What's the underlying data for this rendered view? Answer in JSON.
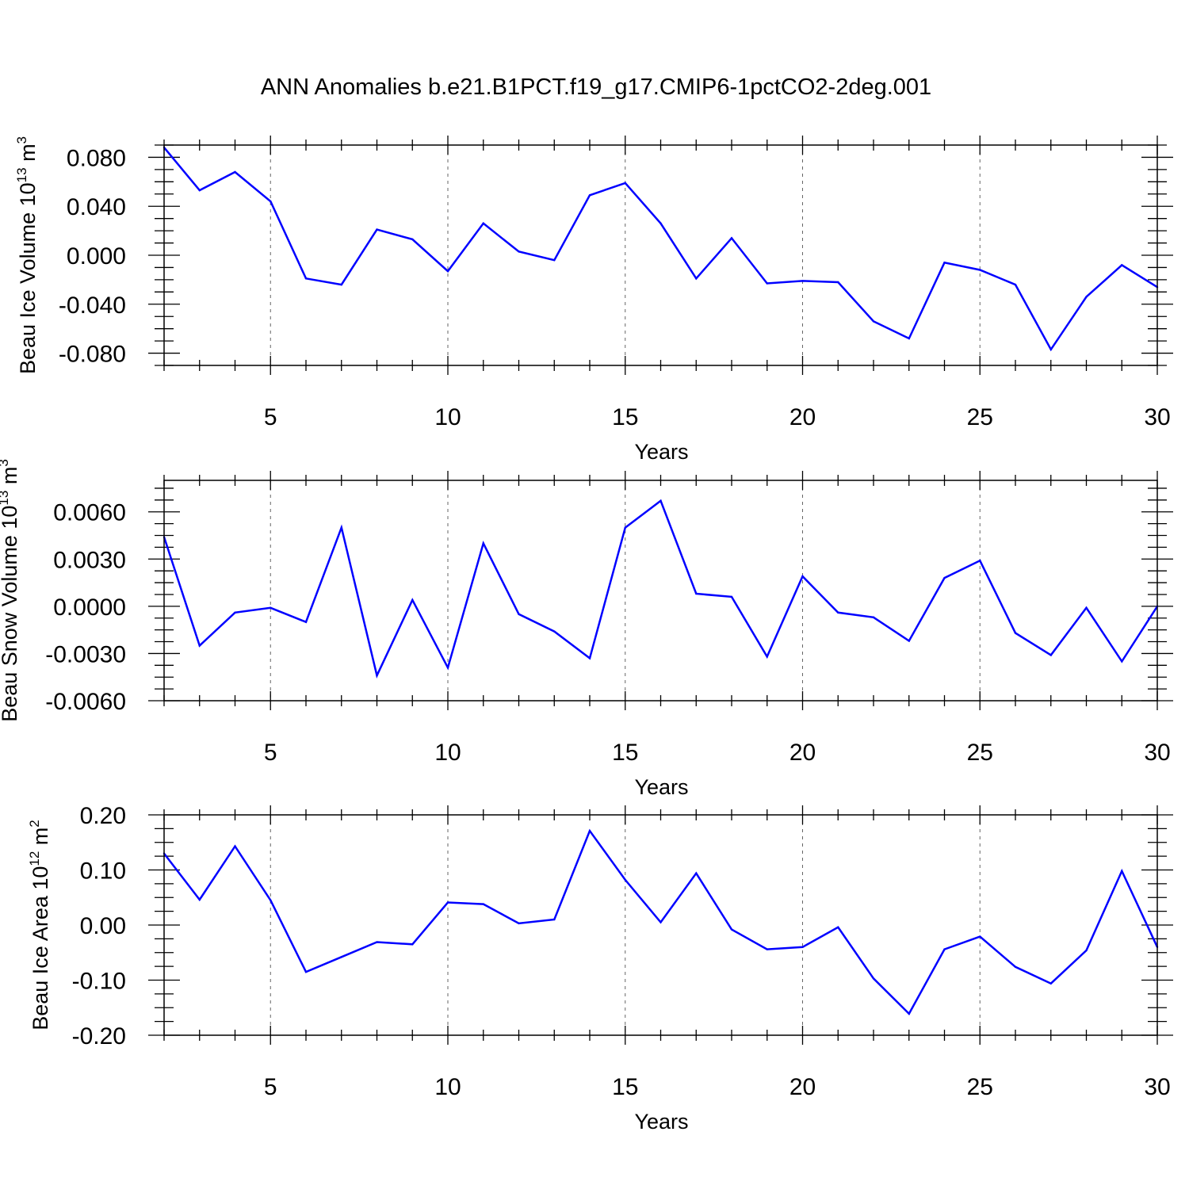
{
  "title": "ANN Anomalies b.e21.B1PCT.f19_g17.CMIP6-1pctCO2-2deg.001",
  "series_color": "#0000FF",
  "chart_data": [
    {
      "type": "line",
      "xlabel": "Years",
      "ylabel_main": "Beau Ice Volume 10",
      "ylabel_exp": "13",
      "ylabel_unit": " m",
      "ylabel_unit_exp": "3",
      "xlim": [
        2,
        30
      ],
      "ylim": [
        -0.09,
        0.09
      ],
      "yticks": [
        -0.08,
        -0.04,
        0.0,
        0.04,
        0.08
      ],
      "ytick_labels": [
        "-0.080",
        "-0.040",
        "0.000",
        "0.040",
        "0.080"
      ],
      "xticks": [
        5,
        10,
        15,
        20,
        25,
        30
      ],
      "xtick_labels": [
        "5",
        "10",
        "15",
        "20",
        "25",
        "30"
      ],
      "grid_x": [
        5,
        10,
        15,
        20,
        25
      ],
      "x": [
        2,
        3,
        4,
        5,
        6,
        7,
        8,
        9,
        10,
        11,
        12,
        13,
        14,
        15,
        16,
        17,
        18,
        19,
        20,
        21,
        22,
        23,
        24,
        25,
        26,
        27,
        28,
        29,
        30
      ],
      "values": [
        0.088,
        0.053,
        0.068,
        0.044,
        -0.019,
        -0.024,
        0.021,
        0.013,
        -0.013,
        0.026,
        0.003,
        -0.004,
        0.049,
        0.059,
        0.026,
        -0.019,
        0.014,
        -0.023,
        -0.021,
        -0.022,
        -0.054,
        -0.068,
        -0.006,
        -0.012,
        -0.024,
        -0.077,
        -0.034,
        -0.008,
        -0.026
      ]
    },
    {
      "type": "line",
      "xlabel": "Years",
      "ylabel_main": "Beau Snow Volume 10",
      "ylabel_exp": "13",
      "ylabel_unit": " m",
      "ylabel_unit_exp": "3",
      "xlim": [
        2,
        30
      ],
      "ylim": [
        -0.006,
        0.008
      ],
      "yticks": [
        -0.006,
        -0.003,
        0.0,
        0.003,
        0.006
      ],
      "ytick_labels": [
        "-0.0060",
        "-0.0030",
        "0.0000",
        "0.0030",
        "0.0060"
      ],
      "xticks": [
        5,
        10,
        15,
        20,
        25,
        30
      ],
      "xtick_labels": [
        "5",
        "10",
        "15",
        "20",
        "25",
        "30"
      ],
      "grid_x": [
        5,
        10,
        15,
        20,
        25
      ],
      "x": [
        2,
        3,
        4,
        5,
        6,
        7,
        8,
        9,
        10,
        11,
        12,
        13,
        14,
        15,
        16,
        17,
        18,
        19,
        20,
        21,
        22,
        23,
        24,
        25,
        26,
        27,
        28,
        29,
        30
      ],
      "values": [
        0.0044,
        -0.0025,
        -0.0004,
        -0.0001,
        -0.001,
        0.005,
        -0.0044,
        0.0004,
        -0.0039,
        0.004,
        -0.0005,
        -0.0016,
        -0.0033,
        0.005,
        0.0067,
        0.0008,
        0.0006,
        -0.0032,
        0.0019,
        -0.0004,
        -0.0007,
        -0.0022,
        0.0018,
        0.0029,
        -0.0017,
        -0.0031,
        -0.0001,
        -0.0035,
        0.0
      ]
    },
    {
      "type": "line",
      "xlabel": "Years",
      "ylabel_main": "Beau Ice Area 10",
      "ylabel_exp": "12",
      "ylabel_unit": " m",
      "ylabel_unit_exp": "2",
      "xlim": [
        2,
        30
      ],
      "ylim": [
        -0.2,
        0.2
      ],
      "yticks": [
        -0.2,
        -0.1,
        0.0,
        0.1,
        0.2
      ],
      "ytick_labels": [
        "-0.20",
        "-0.10",
        "0.00",
        "0.10",
        "0.20"
      ],
      "xticks": [
        5,
        10,
        15,
        20,
        25,
        30
      ],
      "xtick_labels": [
        "5",
        "10",
        "15",
        "20",
        "25",
        "30"
      ],
      "grid_x": [
        5,
        10,
        15,
        20,
        25
      ],
      "x": [
        2,
        3,
        4,
        5,
        6,
        7,
        8,
        9,
        10,
        11,
        12,
        13,
        14,
        15,
        16,
        17,
        18,
        19,
        20,
        21,
        22,
        23,
        24,
        25,
        26,
        27,
        28,
        29,
        30
      ],
      "values": [
        0.13,
        0.046,
        0.143,
        0.045,
        -0.085,
        -0.058,
        -0.031,
        -0.035,
        0.041,
        0.038,
        0.003,
        0.01,
        0.171,
        0.082,
        0.005,
        0.094,
        -0.008,
        -0.044,
        -0.04,
        -0.004,
        -0.097,
        -0.161,
        -0.044,
        -0.021,
        -0.076,
        -0.106,
        -0.046,
        0.098,
        -0.04
      ]
    }
  ]
}
